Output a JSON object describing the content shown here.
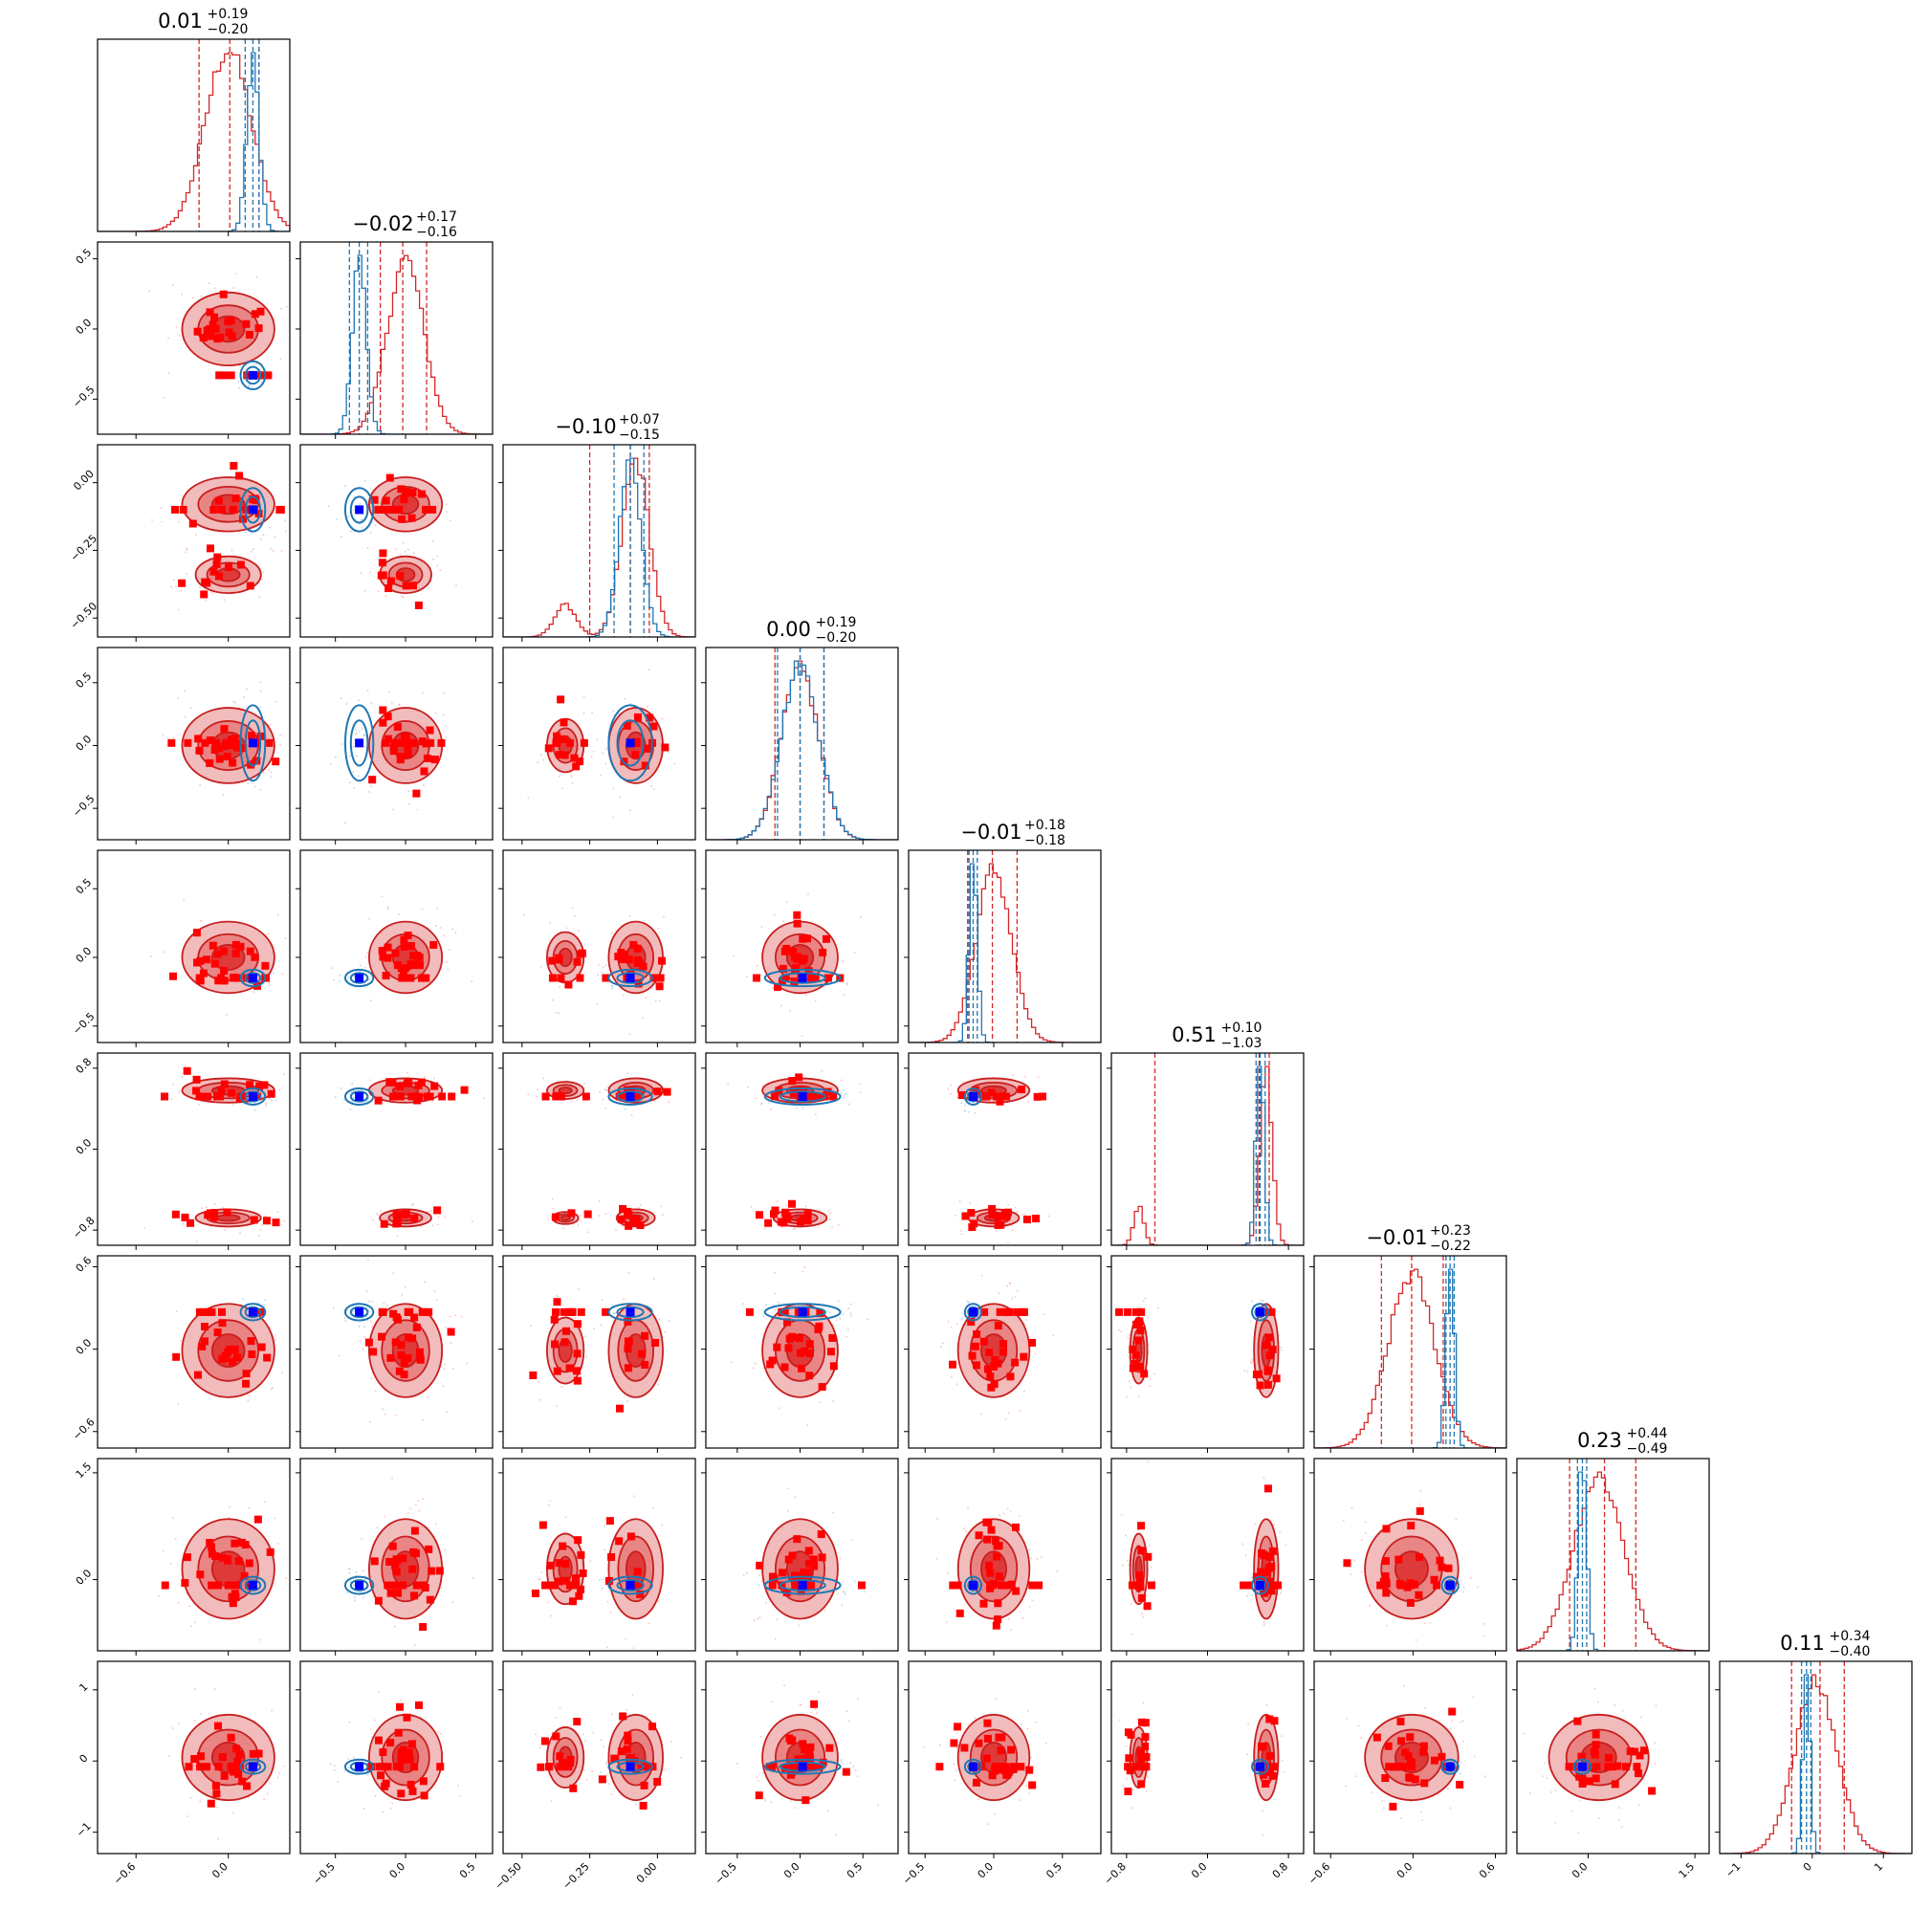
{
  "chart_data": {
    "type": "corner",
    "n_params": 9,
    "colors": {
      "posterior_red": "#d62728",
      "reference_blue": "#1f77b4",
      "truth_marker": "#0000ff",
      "sample_marker": "#ff0000"
    },
    "titles": [
      {
        "median": "0.01",
        "plus": "+0.19",
        "minus": "−0.20"
      },
      {
        "median": "−0.02",
        "plus": "+0.17",
        "minus": "−0.16"
      },
      {
        "median": "−0.10",
        "plus": "+0.07",
        "minus": "−0.15"
      },
      {
        "median": "0.00",
        "plus": "+0.19",
        "minus": "−0.20"
      },
      {
        "median": "−0.01",
        "plus": "+0.18",
        "minus": "−0.18"
      },
      {
        "median": "0.51",
        "plus": "+0.10",
        "minus": "−1.03"
      },
      {
        "median": "−0.01",
        "plus": "+0.23",
        "minus": "−0.22"
      },
      {
        "median": "0.23",
        "plus": "+0.44",
        "minus": "−0.49"
      },
      {
        "median": "0.11",
        "plus": "+0.34",
        "minus": "−0.40"
      }
    ],
    "params": [
      {
        "range": [
          -0.85,
          0.4
        ],
        "ticks": [
          -0.6,
          0.0
        ],
        "tick_labels": [
          "−0.6",
          "0.0"
        ],
        "truth": 0.16,
        "red": {
          "mu": 0.0,
          "sigma": 0.15,
          "q": [
            -0.19,
            0.01,
            0.2
          ]
        },
        "blue": {
          "mu": 0.16,
          "sigma": 0.04,
          "q": [
            0.11,
            0.16,
            0.2
          ]
        }
      },
      {
        "range": [
          -0.75,
          0.62
        ],
        "ticks": [
          -0.5,
          0.0,
          0.5
        ],
        "tick_labels": [
          "−0.5",
          "0.0",
          "0.5"
        ],
        "y_ticks": [
          -0.5,
          0.0,
          0.5
        ],
        "y_tick_labels": [
          "−0.5",
          "0.0",
          "0.5"
        ],
        "truth": -0.33,
        "red": {
          "mu": 0.0,
          "sigma": 0.13,
          "q": [
            -0.18,
            -0.02,
            0.15
          ]
        },
        "blue": {
          "mu": -0.33,
          "sigma": 0.05,
          "q": [
            -0.4,
            -0.33,
            -0.27
          ]
        }
      },
      {
        "range": [
          -0.57,
          0.14
        ],
        "ticks": [
          -0.5,
          -0.25,
          0.0
        ],
        "tick_labels": [
          "−0.50",
          "−0.25",
          "0.00"
        ],
        "y_ticks": [
          -0.5,
          -0.25,
          0.0
        ],
        "y_tick_labels": [
          "−0.50",
          "−0.25",
          "0.00"
        ],
        "truth": -0.1,
        "red": {
          "mu": -0.08,
          "sigma": 0.05,
          "q": [
            -0.25,
            -0.1,
            -0.03
          ],
          "bump": {
            "mu": -0.34,
            "sigma": 0.04,
            "w": 0.18
          }
        },
        "blue": {
          "mu": -0.1,
          "sigma": 0.04,
          "q": [
            -0.16,
            -0.1,
            -0.05
          ]
        }
      },
      {
        "range": [
          -0.75,
          0.78
        ],
        "ticks": [
          -0.5,
          0.0,
          0.5
        ],
        "tick_labels": [
          "−0.5",
          "0.0",
          "0.5"
        ],
        "y_ticks": [
          -0.5,
          0.0,
          0.5
        ],
        "y_tick_labels": [
          "−0.5",
          "0.0",
          "0.5"
        ],
        "truth": 0.02,
        "red": {
          "mu": 0.0,
          "sigma": 0.15,
          "q": [
            -0.2,
            0.0,
            0.19
          ]
        },
        "blue": {
          "mu": 0.0,
          "sigma": 0.15,
          "q": [
            -0.18,
            0.0,
            0.19
          ]
        }
      },
      {
        "range": [
          -0.62,
          0.78
        ],
        "ticks": [
          -0.5,
          0.0,
          0.5
        ],
        "tick_labels": [
          "−0.5",
          "0.0",
          "0.5"
        ],
        "y_ticks": [
          -0.5,
          0.0,
          0.5
        ],
        "y_tick_labels": [
          "−0.5",
          "0.0",
          "0.5"
        ],
        "truth": -0.15,
        "red": {
          "mu": 0.0,
          "sigma": 0.13,
          "q": [
            -0.19,
            -0.01,
            0.17
          ]
        },
        "blue": {
          "mu": -0.15,
          "sigma": 0.03,
          "q": [
            -0.18,
            -0.15,
            -0.12
          ]
        }
      },
      {
        "range": [
          -0.95,
          0.95
        ],
        "ticks": [
          -0.8,
          0.0,
          0.8
        ],
        "tick_labels": [
          "−0.8",
          "0.0",
          "0.8"
        ],
        "y_ticks": [
          -0.8,
          0.0,
          0.8
        ],
        "y_tick_labels": [
          "−0.8",
          "0.0",
          "0.8"
        ],
        "truth": 0.52,
        "red": {
          "mu": 0.58,
          "sigma": 0.06,
          "q": [
            -0.52,
            0.51,
            0.61
          ],
          "bump": {
            "mu": -0.68,
            "sigma": 0.05,
            "w": 0.22
          }
        },
        "blue": {
          "mu": 0.52,
          "sigma": 0.04,
          "q": [
            0.48,
            0.52,
            0.57
          ]
        }
      },
      {
        "range": [
          -0.72,
          0.68
        ],
        "ticks": [
          -0.6,
          0.0,
          0.6
        ],
        "tick_labels": [
          "−0.6",
          "0.0",
          "0.6"
        ],
        "y_ticks": [
          -0.6,
          0.0,
          0.6
        ],
        "y_tick_labels": [
          "−0.6",
          "0.0",
          "0.6"
        ],
        "truth": 0.27,
        "red": {
          "mu": -0.01,
          "sigma": 0.17,
          "q": [
            -0.23,
            -0.01,
            0.22
          ]
        },
        "blue": {
          "mu": 0.27,
          "sigma": 0.03,
          "q": [
            0.24,
            0.27,
            0.3
          ]
        }
      },
      {
        "range": [
          -1.0,
          1.7
        ],
        "ticks": [
          0.0,
          1.5
        ],
        "tick_labels": [
          "0.0",
          "1.5"
        ],
        "y_ticks": [
          0.0,
          1.5
        ],
        "y_tick_labels": [
          "0.0",
          "1.5"
        ],
        "truth": -0.08,
        "red": {
          "mu": 0.15,
          "sigma": 0.35,
          "q": [
            -0.26,
            0.23,
            0.67
          ]
        },
        "blue": {
          "mu": -0.08,
          "sigma": 0.06,
          "q": [
            -0.15,
            -0.08,
            -0.02
          ]
        }
      },
      {
        "range": [
          -1.3,
          1.4
        ],
        "ticks": [
          -1,
          0,
          1
        ],
        "tick_labels": [
          "−1",
          "0",
          "1"
        ],
        "y_ticks": [
          -1,
          0,
          1
        ],
        "y_tick_labels": [
          "−1",
          "0",
          "1"
        ],
        "truth": -0.08,
        "red": {
          "mu": 0.05,
          "sigma": 0.3,
          "q": [
            -0.29,
            0.11,
            0.45
          ]
        },
        "blue": {
          "mu": -0.08,
          "sigma": 0.05,
          "q": [
            -0.15,
            -0.08,
            -0.02
          ]
        }
      }
    ]
  }
}
